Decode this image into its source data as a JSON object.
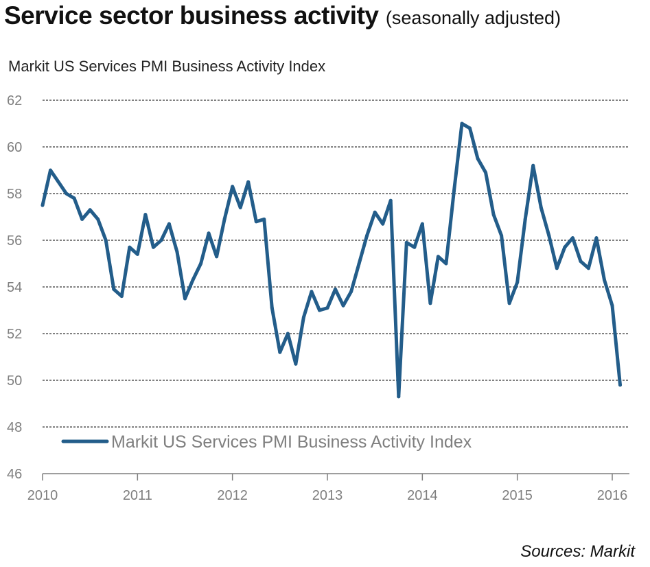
{
  "header": {
    "title": "Service sector business activity",
    "subtitle": "(seasonally adjusted)"
  },
  "chart_label": "Markit US Services PMI Business Activity Index",
  "source": "Sources: Markit",
  "colors": {
    "series": "#235d8a",
    "axis_text": "#7f7f7f",
    "grid": "#000000"
  },
  "chart_data": {
    "type": "line",
    "title": "Service sector business activity",
    "subtitle": "(seasonally adjusted)",
    "ylabel": "Markit US Services PMI Business Activity Index",
    "xlabel": "",
    "ylim": [
      46,
      62
    ],
    "yticks": [
      46,
      48,
      50,
      52,
      54,
      56,
      58,
      60,
      62
    ],
    "xlim": [
      2010.0,
      2016.0
    ],
    "xticks": [
      "2010",
      "2011",
      "2012",
      "2013",
      "2014",
      "2015",
      "2016"
    ],
    "grid": true,
    "legend": "bottom-left",
    "series": [
      {
        "name": "Markit US Services PMI Business Activity Index",
        "color": "#235d8a",
        "x": [
          "2010-01",
          "2010-02",
          "2010-03",
          "2010-04",
          "2010-05",
          "2010-06",
          "2010-07",
          "2010-08",
          "2010-09",
          "2010-10",
          "2010-11",
          "2010-12",
          "2011-01",
          "2011-02",
          "2011-03",
          "2011-04",
          "2011-05",
          "2011-06",
          "2011-07",
          "2011-08",
          "2011-09",
          "2011-10",
          "2011-11",
          "2011-12",
          "2012-01",
          "2012-02",
          "2012-03",
          "2012-04",
          "2012-05",
          "2012-06",
          "2012-07",
          "2012-08",
          "2012-09",
          "2012-10",
          "2012-11",
          "2012-12",
          "2013-01",
          "2013-02",
          "2013-03",
          "2013-04",
          "2013-05",
          "2013-06",
          "2013-07",
          "2013-08",
          "2013-09",
          "2013-10",
          "2013-11",
          "2013-12",
          "2014-01",
          "2014-02",
          "2014-03",
          "2014-04",
          "2014-05",
          "2014-06",
          "2014-07",
          "2014-08",
          "2014-09",
          "2014-10",
          "2014-11",
          "2014-12",
          "2015-01",
          "2015-02",
          "2015-03",
          "2015-04",
          "2015-05",
          "2015-06",
          "2015-07",
          "2015-08",
          "2015-09",
          "2015-10",
          "2015-11",
          "2015-12",
          "2016-01",
          "2016-02"
        ],
        "values": [
          57.5,
          59.0,
          58.5,
          58.0,
          57.8,
          56.9,
          57.3,
          56.9,
          56.0,
          53.9,
          53.6,
          55.7,
          55.4,
          57.1,
          55.7,
          56.0,
          56.7,
          55.5,
          53.5,
          54.3,
          55.0,
          56.3,
          55.3,
          56.9,
          58.3,
          57.4,
          58.5,
          56.8,
          56.9,
          53.1,
          51.2,
          52.0,
          50.7,
          52.7,
          53.8,
          53.0,
          53.1,
          53.9,
          53.2,
          53.8,
          55.0,
          56.2,
          57.2,
          56.7,
          57.7,
          49.3,
          55.9,
          55.7,
          56.7,
          53.3,
          55.3,
          55.0,
          58.1,
          61.0,
          60.8,
          59.5,
          58.9,
          57.1,
          56.2,
          53.3,
          54.2,
          56.9,
          59.2,
          57.4,
          56.2,
          54.8,
          55.7,
          56.1,
          55.1,
          54.8,
          56.1,
          54.3,
          53.2,
          49.8
        ]
      }
    ]
  }
}
